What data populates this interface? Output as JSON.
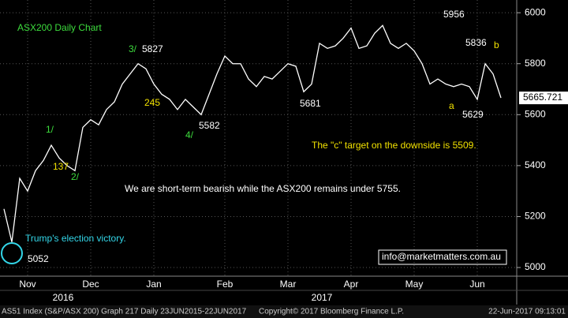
{
  "chart_data": {
    "type": "line",
    "title": "ASX200 Daily Chart",
    "categories": [
      null,
      null,
      null,
      "Nov",
      null,
      null,
      null,
      null,
      null,
      null,
      null,
      "Dec",
      null,
      null,
      null,
      null,
      null,
      null,
      null,
      "Jan",
      null,
      null,
      null,
      null,
      null,
      null,
      null,
      null,
      "Feb",
      null,
      null,
      null,
      null,
      null,
      null,
      null,
      "Mar",
      null,
      null,
      null,
      null,
      null,
      null,
      null,
      "Apr",
      null,
      null,
      null,
      null,
      null,
      null,
      null,
      "May",
      null,
      null,
      null,
      null,
      null,
      null,
      null,
      "Jun",
      null,
      null,
      null
    ],
    "series": [
      {
        "name": "AS51 Index",
        "color": "#ffffff",
        "values": [
          5230,
          5100,
          5350,
          5300,
          5380,
          5420,
          5480,
          5430,
          5400,
          5380,
          5550,
          5580,
          5560,
          5620,
          5650,
          5720,
          5760,
          5800,
          5780,
          5720,
          5680,
          5660,
          5620,
          5660,
          5630,
          5600,
          5680,
          5760,
          5830,
          5800,
          5800,
          5740,
          5710,
          5750,
          5740,
          5770,
          5800,
          5790,
          5690,
          5720,
          5880,
          5860,
          5870,
          5900,
          5940,
          5860,
          5870,
          5920,
          5950,
          5880,
          5860,
          5880,
          5850,
          5800,
          5720,
          5740,
          5720,
          5710,
          5720,
          5710,
          5660,
          5800,
          5760,
          5666
        ]
      }
    ],
    "years": [
      "2016",
      "2017"
    ],
    "ylim": [
      4966,
      6050
    ],
    "yticks": [
      5000,
      5200,
      5400,
      5600,
      5800,
      6000
    ],
    "grid": true,
    "last_price": {
      "value": 5665.721,
      "label": "5665.721"
    },
    "annotations": [
      {
        "text": "5956",
        "color": "#ffffff"
      },
      {
        "text": "5836",
        "color": "#ffffff"
      },
      {
        "text": "b",
        "color": "#f2e200"
      },
      {
        "text": "3/",
        "color": "#3ddc3d"
      },
      {
        "text": "5827",
        "color": "#ffffff"
      },
      {
        "text": "245",
        "color": "#f2e200"
      },
      {
        "text": "5681",
        "color": "#ffffff"
      },
      {
        "text": "5582",
        "color": "#ffffff"
      },
      {
        "text": "4/",
        "color": "#3ddc3d"
      },
      {
        "text": "a",
        "color": "#f2e200"
      },
      {
        "text": "5629",
        "color": "#ffffff"
      },
      {
        "text": "1/",
        "color": "#3ddc3d"
      },
      {
        "text": "137",
        "color": "#f2e200"
      },
      {
        "text": "2/",
        "color": "#3ddc3d"
      },
      {
        "text": "The \"c\" target on the downside is 5509.",
        "color": "#f2e200"
      },
      {
        "text": "We are short-term bearish while the ASX200 remains under 5755.",
        "color": "#ffffff"
      },
      {
        "text": "Trump's election victory.",
        "color": "#33d6e8"
      },
      {
        "text": "5052",
        "color": "#ffffff"
      }
    ],
    "watermark": "info@marketmatters.com.au",
    "footer": [
      "AS51 Index (S&P/ASX 200) Graph 217  Daily 23JUN2015-22JUN2017",
      "Copyright© 2017 Bloomberg Finance L.P.",
      "22-Jun-2017 09:13:01"
    ]
  }
}
